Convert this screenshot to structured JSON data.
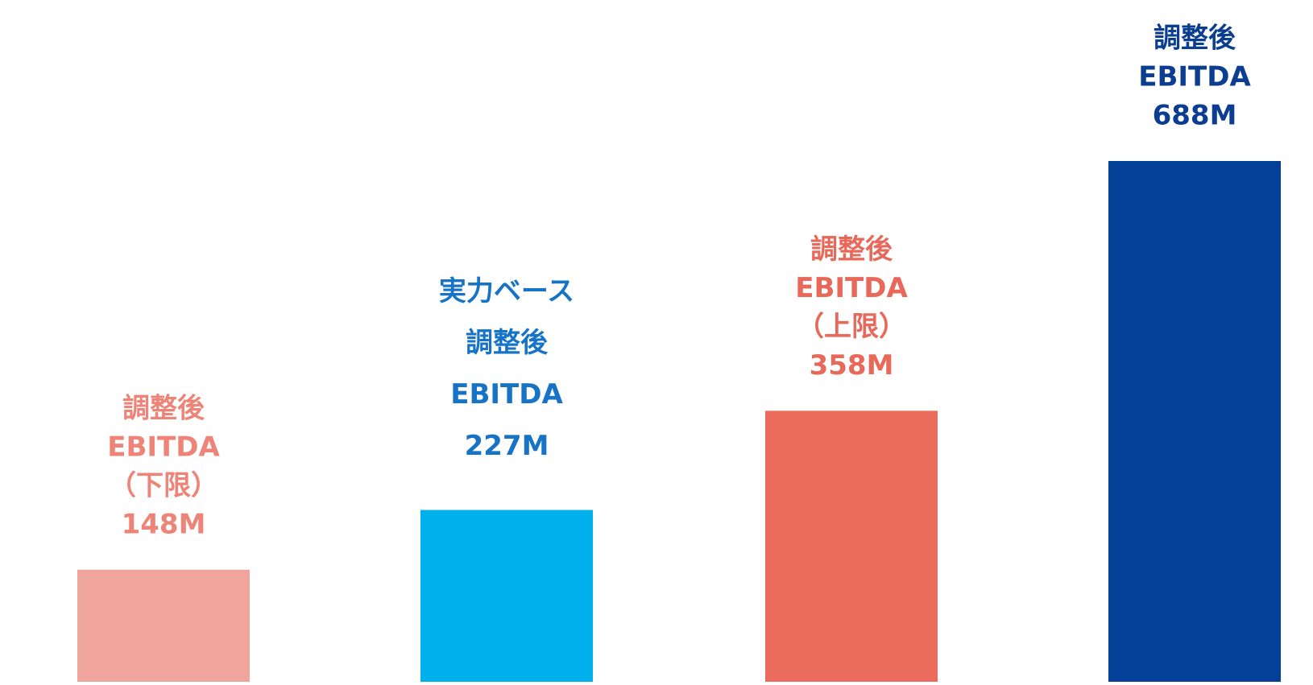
{
  "chart_data": {
    "type": "bar",
    "categories": [
      [
        "調整後",
        "EBITDA",
        "（下限）"
      ],
      [
        "実力ベース",
        "調整後",
        "EBITDA"
      ],
      [
        "調整後",
        "EBITDA",
        "（上限）"
      ],
      [
        "調整後",
        "EBITDA"
      ]
    ],
    "values": [
      148,
      227,
      358,
      688
    ],
    "value_labels": [
      "148M",
      "227M",
      "358M",
      "688M"
    ],
    "colors": [
      "#f0a59c",
      "#00b0ec",
      "#eb6b5c",
      "#043f98"
    ],
    "label_colors": [
      "#ee8378",
      "#1673c5",
      "#e8685a",
      "#0b3d91"
    ]
  }
}
